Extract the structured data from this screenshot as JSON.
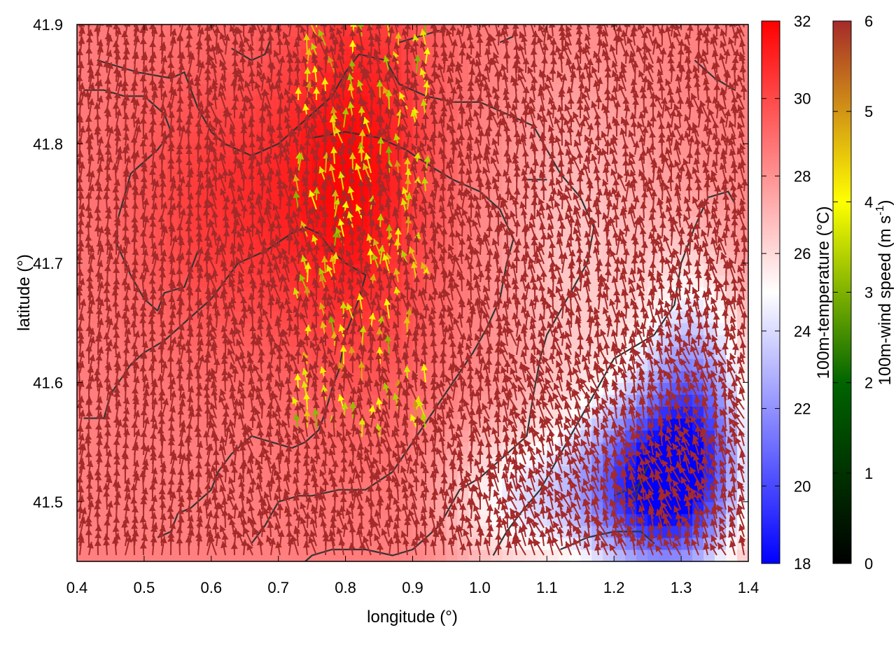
{
  "chart_data": {
    "type": "heatmap",
    "xlabel": "longitude (°)",
    "ylabel": "latitude (°)",
    "xlim": [
      0.4,
      1.4
    ],
    "ylim": [
      41.45,
      41.9
    ],
    "xticks": [
      "0.4",
      "0.5",
      "0.6",
      "0.7",
      "0.8",
      "0.9",
      "1.0",
      "1.1",
      "1.2",
      "1.3",
      "1.4"
    ],
    "yticks": [
      "41.5",
      "41.6",
      "41.7",
      "41.8",
      "41.9"
    ],
    "temperature_colorbar": {
      "label": "100m-temperature (°C)",
      "range": [
        18,
        32
      ],
      "ticks": [
        "18",
        "20",
        "22",
        "24",
        "26",
        "28",
        "30",
        "32"
      ],
      "colors": [
        "#0000ff",
        "#ffffff",
        "#ff0000"
      ]
    },
    "wind_colorbar": {
      "label_main": "100m-wind speed (m s",
      "label_sup": "-1",
      "label_end": ")",
      "range": [
        0,
        6
      ],
      "ticks": [
        "0",
        "1",
        "2",
        "3",
        "4",
        "5",
        "6"
      ],
      "colors": [
        "#000000",
        "#006400",
        "#ffff00",
        "#a52a2a"
      ]
    },
    "temperature_field": {
      "description_units": "°C",
      "background": 28.5,
      "features": [
        {
          "lon": 0.82,
          "lat": 41.78,
          "value": 31.5,
          "spread_lon": 0.12,
          "spread_lat": 0.18
        },
        {
          "lon": 0.62,
          "lat": 41.75,
          "value": 30.5,
          "spread_lon": 0.15,
          "spread_lat": 0.12
        },
        {
          "lon": 1.25,
          "lat": 41.51,
          "value": 19.5,
          "spread_lon": 0.12,
          "spread_lat": 0.08
        },
        {
          "lon": 1.32,
          "lat": 41.58,
          "value": 22.5,
          "spread_lon": 0.08,
          "spread_lat": 0.12
        },
        {
          "lon": 1.05,
          "lat": 41.5,
          "value": 25.0,
          "spread_lon": 0.1,
          "spread_lat": 0.06
        },
        {
          "lon": 1.15,
          "lat": 41.7,
          "value": 26.5,
          "spread_lon": 0.12,
          "spread_lat": 0.15
        }
      ]
    },
    "wind_field": {
      "units": "m s-1",
      "dominant_speed": 6,
      "dominant_direction": "toward north-northwest",
      "slow_band": {
        "lon_min": 0.72,
        "lon_max": 0.92,
        "lat_min": 41.55,
        "lat_max": 41.9,
        "speed_range": [
          3,
          5
        ]
      }
    },
    "contours": [
      {
        "points": [
          [
            0.43,
            41.87
          ],
          [
            0.49,
            41.86
          ],
          [
            0.54,
            41.855
          ],
          [
            0.56,
            41.86
          ],
          [
            0.58,
            41.83
          ],
          [
            0.6,
            41.81
          ],
          [
            0.62,
            41.8
          ],
          [
            0.66,
            41.79
          ],
          [
            0.7,
            41.8
          ],
          [
            0.74,
            41.82
          ],
          [
            0.78,
            41.84
          ],
          [
            0.8,
            41.86
          ],
          [
            0.82,
            41.875
          ],
          [
            0.86,
            41.87
          ],
          [
            0.88,
            41.85
          ],
          [
            0.92,
            41.84
          ],
          [
            0.96,
            41.835
          ],
          [
            1.0,
            41.835
          ],
          [
            1.04,
            41.825
          ],
          [
            1.08,
            41.815
          ],
          [
            1.1,
            41.795
          ],
          [
            1.12,
            41.775
          ],
          [
            1.15,
            41.755
          ],
          [
            1.17,
            41.73
          ],
          [
            1.16,
            41.7
          ],
          [
            1.13,
            41.67
          ],
          [
            1.1,
            41.64
          ],
          [
            1.09,
            41.62
          ],
          [
            1.08,
            41.59
          ],
          [
            1.07,
            41.555
          ],
          [
            1.04,
            41.54
          ],
          [
            1.0,
            41.52
          ],
          [
            0.97,
            41.51
          ],
          [
            0.94,
            41.48
          ],
          [
            0.9,
            41.46
          ],
          [
            0.87,
            41.455
          ],
          [
            0.83,
            41.46
          ],
          [
            0.78,
            41.46
          ],
          [
            0.75,
            41.455
          ],
          [
            0.74,
            41.45
          ]
        ]
      },
      {
        "points": [
          [
            0.41,
            41.845
          ],
          [
            0.44,
            41.845
          ],
          [
            0.47,
            41.84
          ],
          [
            0.5,
            41.84
          ],
          [
            0.53,
            41.825
          ],
          [
            0.54,
            41.81
          ],
          [
            0.52,
            41.795
          ],
          [
            0.5,
            41.785
          ],
          [
            0.48,
            41.775
          ],
          [
            0.47,
            41.755
          ],
          [
            0.46,
            41.735
          ],
          [
            0.46,
            41.715
          ],
          [
            0.48,
            41.69
          ],
          [
            0.5,
            41.67
          ],
          [
            0.52,
            41.66
          ]
        ]
      },
      {
        "points": [
          [
            0.58,
            41.71
          ],
          [
            0.56,
            41.68
          ],
          [
            0.53,
            41.675
          ],
          [
            0.52,
            41.66
          ]
        ]
      },
      {
        "points": [
          [
            0.41,
            41.57
          ],
          [
            0.44,
            41.57
          ],
          [
            0.45,
            41.59
          ],
          [
            0.48,
            41.615
          ],
          [
            0.5,
            41.625
          ],
          [
            0.53,
            41.635
          ],
          [
            0.56,
            41.65
          ],
          [
            0.6,
            41.67
          ],
          [
            0.62,
            41.685
          ],
          [
            0.64,
            41.7
          ],
          [
            0.68,
            41.71
          ],
          [
            0.72,
            41.725
          ],
          [
            0.74,
            41.73
          ],
          [
            0.76,
            41.725
          ],
          [
            0.78,
            41.71
          ],
          [
            0.8,
            41.7
          ],
          [
            0.83,
            41.69
          ],
          [
            0.82,
            41.67
          ],
          [
            0.8,
            41.64
          ],
          [
            0.79,
            41.61
          ],
          [
            0.78,
            41.595
          ],
          [
            0.77,
            41.575
          ],
          [
            0.76,
            41.56
          ],
          [
            0.74,
            41.55
          ],
          [
            0.72,
            41.545
          ]
        ]
      },
      {
        "points": [
          [
            0.72,
            41.545
          ],
          [
            0.69,
            41.55
          ],
          [
            0.66,
            41.555
          ],
          [
            0.63,
            41.54
          ],
          [
            0.61,
            41.525
          ],
          [
            0.6,
            41.51
          ],
          [
            0.57,
            41.495
          ],
          [
            0.55,
            41.49
          ],
          [
            0.54,
            41.475
          ],
          [
            0.52,
            41.47
          ]
        ]
      },
      {
        "points": [
          [
            0.66,
            41.465
          ],
          [
            0.68,
            41.48
          ],
          [
            0.7,
            41.5
          ],
          [
            0.73,
            41.505
          ],
          [
            0.75,
            41.505
          ],
          [
            0.79,
            41.51
          ],
          [
            0.83,
            41.51
          ],
          [
            0.87,
            41.525
          ],
          [
            0.9,
            41.55
          ],
          [
            0.93,
            41.575
          ],
          [
            0.96,
            41.6
          ],
          [
            0.99,
            41.625
          ],
          [
            1.01,
            41.645
          ],
          [
            1.03,
            41.67
          ],
          [
            1.04,
            41.7
          ],
          [
            1.05,
            41.72
          ],
          [
            1.03,
            41.745
          ],
          [
            1.0,
            41.76
          ],
          [
            0.96,
            41.77
          ],
          [
            0.93,
            41.78
          ],
          [
            0.89,
            41.795
          ],
          [
            0.85,
            41.805
          ],
          [
            0.8,
            41.81
          ],
          [
            0.75,
            41.805
          ]
        ]
      },
      {
        "points": [
          [
            1.02,
            41.455
          ],
          [
            1.04,
            41.475
          ],
          [
            1.06,
            41.49
          ],
          [
            1.09,
            41.51
          ],
          [
            1.13,
            41.55
          ],
          [
            1.16,
            41.58
          ],
          [
            1.18,
            41.6
          ],
          [
            1.2,
            41.62
          ],
          [
            1.23,
            41.63
          ],
          [
            1.26,
            41.64
          ],
          [
            1.29,
            41.665
          ],
          [
            1.3,
            41.7
          ],
          [
            1.32,
            41.73
          ],
          [
            1.34,
            41.755
          ],
          [
            1.37,
            41.76
          ],
          [
            1.38,
            41.75
          ]
        ]
      },
      {
        "points": [
          [
            1.2,
            41.505
          ],
          [
            1.24,
            41.515
          ],
          [
            1.25,
            41.53
          ],
          [
            1.24,
            41.52
          ],
          [
            1.23,
            41.5
          ]
        ]
      },
      {
        "points": [
          [
            1.12,
            41.46
          ],
          [
            1.16,
            41.47
          ],
          [
            1.2,
            41.475
          ],
          [
            1.24,
            41.475
          ],
          [
            1.26,
            41.465
          ]
        ]
      },
      {
        "points": [
          [
            1.32,
            41.87
          ],
          [
            1.35,
            41.855
          ],
          [
            1.38,
            41.845
          ]
        ]
      },
      {
        "points": [
          [
            0.63,
            41.88
          ],
          [
            0.66,
            41.87
          ],
          [
            0.68,
            41.875
          ],
          [
            0.69,
            41.89
          ]
        ]
      },
      {
        "points": [
          [
            0.88,
            41.885
          ],
          [
            0.91,
            41.89
          ],
          [
            0.94,
            41.895
          ]
        ]
      },
      {
        "points": [
          [
            1.07,
            41.77
          ],
          [
            1.09,
            41.77
          ],
          [
            1.1,
            41.77
          ]
        ]
      },
      {
        "points": [
          [
            1.03,
            41.885
          ],
          [
            1.05,
            41.89
          ]
        ]
      }
    ]
  }
}
